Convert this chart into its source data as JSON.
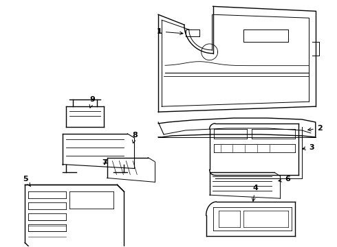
{
  "bg_color": "#ffffff",
  "line_color": "#000000",
  "fig_width": 4.9,
  "fig_height": 3.6,
  "dpi": 100,
  "lw": 1.0
}
